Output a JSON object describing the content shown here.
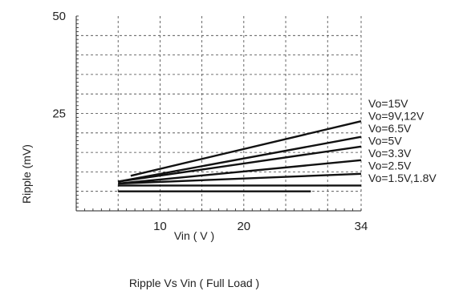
{
  "chart_data": {
    "type": "line",
    "title": "Ripple  Vs Vin ( Full Load )",
    "xlabel": "Vin ( V )",
    "ylabel": "Ripple (mV)",
    "xlim": [
      0,
      34
    ],
    "ylim": [
      0,
      50
    ],
    "x_ticks_labeled": [
      10,
      20,
      34
    ],
    "y_ticks_labeled": [
      25,
      50
    ],
    "grid": true,
    "series": [
      {
        "name": "Vo=15V",
        "x": [
          6.5,
          34
        ],
        "y": [
          9,
          23
        ]
      },
      {
        "name": "Vo=9V,12V",
        "x": [
          5,
          34
        ],
        "y": [
          7.5,
          19
        ]
      },
      {
        "name": "Vo=6.5V",
        "x": [
          5,
          34
        ],
        "y": [
          7.5,
          16.5
        ]
      },
      {
        "name": "Vo=5V",
        "x": [
          5,
          34
        ],
        "y": [
          7,
          13
        ]
      },
      {
        "name": "Vo=3.3V",
        "x": [
          5,
          34
        ],
        "y": [
          7,
          9.5
        ]
      },
      {
        "name": "Vo=2.5V",
        "x": [
          5,
          34
        ],
        "y": [
          6.5,
          6.5
        ]
      },
      {
        "name": "Vo=1.5V,1.8V",
        "x": [
          5,
          28
        ],
        "y": [
          5,
          5
        ]
      }
    ]
  }
}
